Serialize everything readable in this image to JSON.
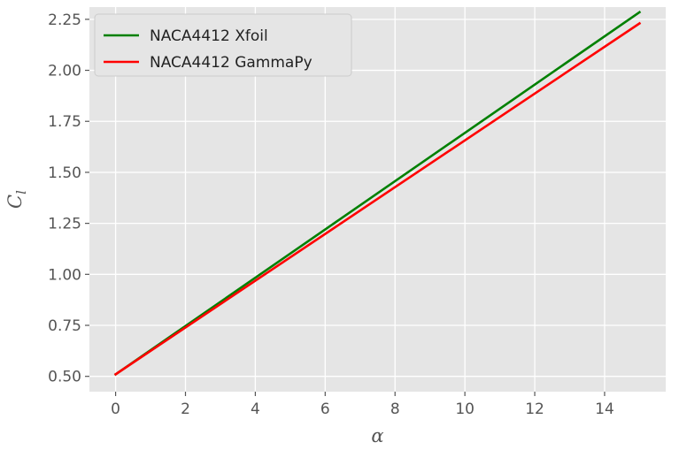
{
  "chart_data": {
    "type": "line",
    "xlabel": "α",
    "ylabel": "C",
    "ylabel_sub": "l",
    "xlim": [
      -0.75,
      15.75
    ],
    "ylim": [
      0.425,
      2.31
    ],
    "xticks": [
      0,
      2,
      4,
      6,
      8,
      10,
      12,
      14
    ],
    "yticks": [
      0.5,
      0.75,
      1.0,
      1.25,
      1.5,
      1.75,
      2.0,
      2.25
    ],
    "xtick_labels": [
      "0",
      "2",
      "4",
      "6",
      "8",
      "10",
      "12",
      "14"
    ],
    "ytick_labels": [
      "0.50",
      "0.75",
      "1.00",
      "1.25",
      "1.50",
      "1.75",
      "2.00",
      "2.25"
    ],
    "grid": true,
    "legend_position": "top-left",
    "series": [
      {
        "name": "NACA4412 Xfoil",
        "color": "#008000",
        "x": [
          0,
          15
        ],
        "y": [
          0.51,
          2.285
        ]
      },
      {
        "name": "NACA4412 GammaPy",
        "color": "#ff0000",
        "x": [
          0,
          15
        ],
        "y": [
          0.51,
          2.23
        ]
      }
    ]
  }
}
